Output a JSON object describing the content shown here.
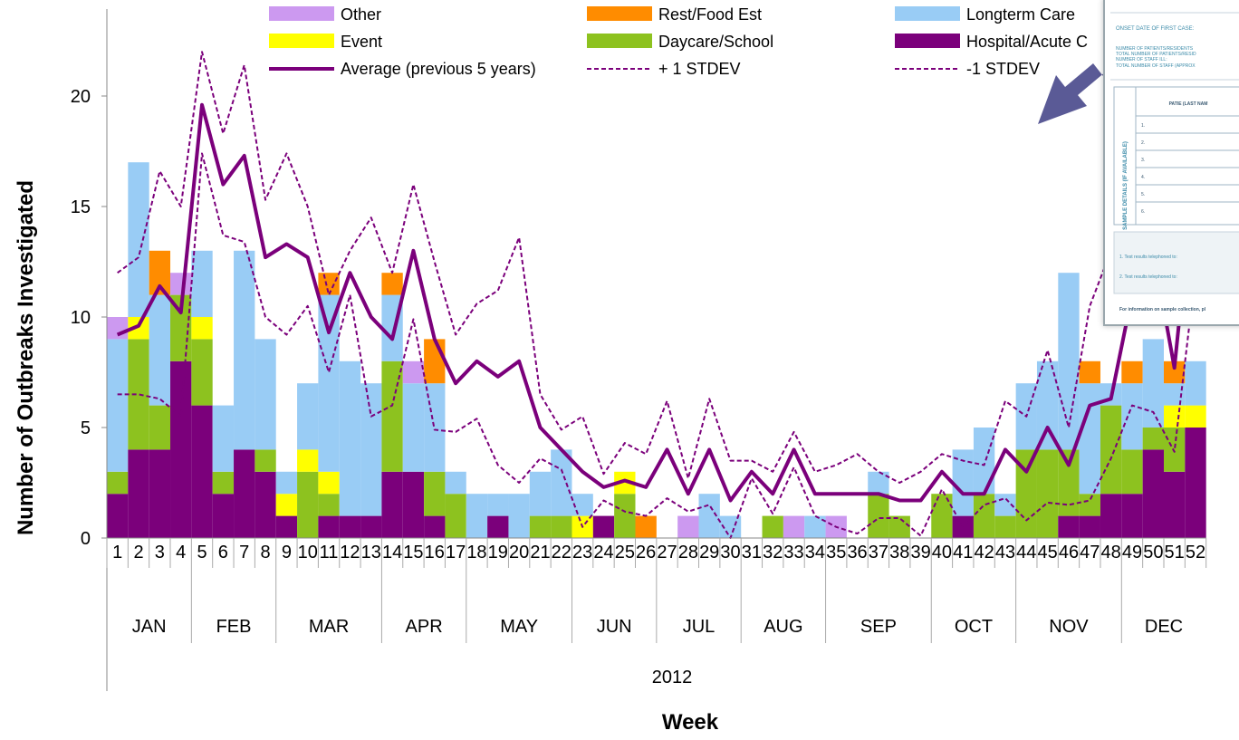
{
  "chart_data": {
    "type": "bar",
    "stacked": true,
    "title": "",
    "ylabel": "Number of Outbreaks Investigated",
    "xlabel": "Week",
    "year_label": "2012",
    "ylim": [
      0,
      24
    ],
    "yticks": [
      0,
      5,
      10,
      15,
      20
    ],
    "grid": false,
    "legend_position": "top",
    "weeks": [
      "1",
      "2",
      "3",
      "4",
      "5",
      "6",
      "7",
      "8",
      "9",
      "10",
      "11",
      "12",
      "13",
      "14",
      "15",
      "16",
      "17",
      "18",
      "19",
      "20",
      "21",
      "22",
      "23",
      "24",
      "25",
      "26",
      "27",
      "28",
      "29",
      "30",
      "31",
      "32",
      "33",
      "34",
      "35",
      "36",
      "37",
      "38",
      "39",
      "40",
      "41",
      "42",
      "43",
      "44",
      "45",
      "46",
      "47",
      "48",
      "49",
      "50",
      "51",
      "52"
    ],
    "months": [
      {
        "label": "JAN",
        "start": 1,
        "end": 4
      },
      {
        "label": "FEB",
        "start": 5,
        "end": 8
      },
      {
        "label": "MAR",
        "start": 9,
        "end": 13
      },
      {
        "label": "APR",
        "start": 14,
        "end": 17
      },
      {
        "label": "MAY",
        "start": 18,
        "end": 22
      },
      {
        "label": "JUN",
        "start": 23,
        "end": 26
      },
      {
        "label": "JUL",
        "start": 27,
        "end": 30
      },
      {
        "label": "AUG",
        "start": 31,
        "end": 34
      },
      {
        "label": "SEP",
        "start": 35,
        "end": 39
      },
      {
        "label": "OCT",
        "start": 40,
        "end": 43
      },
      {
        "label": "NOV",
        "start": 44,
        "end": 48
      },
      {
        "label": "DEC",
        "start": 49,
        "end": 52
      }
    ],
    "series": [
      {
        "name": "Hospital/Acute Care",
        "color": "#7b007b",
        "values": [
          2,
          4,
          4,
          8,
          6,
          2,
          4,
          3,
          1,
          0,
          1,
          1,
          1,
          3,
          3,
          1,
          0,
          0,
          1,
          0,
          0,
          0,
          0,
          1,
          0,
          0,
          0,
          0,
          0,
          0,
          0,
          0,
          0,
          0,
          0,
          0,
          0,
          0,
          0,
          0,
          1,
          0,
          0,
          0,
          0,
          1,
          1,
          2,
          2,
          4,
          3,
          5
        ]
      },
      {
        "name": "Daycare/School",
        "color": "#8dc21f",
        "values": [
          1,
          5,
          2,
          3,
          3,
          1,
          0,
          1,
          0,
          3,
          1,
          0,
          0,
          5,
          0,
          2,
          2,
          0,
          0,
          0,
          1,
          1,
          0,
          0,
          2,
          0,
          0,
          0,
          0,
          0,
          0,
          1,
          0,
          0,
          0,
          0,
          2,
          1,
          0,
          2,
          0,
          2,
          1,
          4,
          4,
          3,
          1,
          4,
          2,
          1,
          2,
          0
        ]
      },
      {
        "name": "Event",
        "color": "#ffff00",
        "values": [
          0,
          1,
          0,
          0,
          1,
          0,
          0,
          0,
          1,
          1,
          1,
          0,
          0,
          0,
          0,
          0,
          0,
          0,
          0,
          0,
          0,
          0,
          1,
          0,
          1,
          0,
          0,
          0,
          0,
          0,
          0,
          0,
          0,
          0,
          0,
          0,
          0,
          0,
          0,
          0,
          0,
          0,
          0,
          0,
          0,
          0,
          0,
          0,
          0,
          0,
          1,
          1
        ]
      },
      {
        "name": "Longterm Care",
        "color": "#99ccf5",
        "values": [
          6,
          7,
          5,
          0,
          3,
          3,
          9,
          5,
          1,
          3,
          8,
          7,
          6,
          3,
          4,
          4,
          1,
          2,
          1,
          2,
          2,
          3,
          1,
          0,
          0,
          0,
          0,
          0,
          2,
          1,
          0,
          0,
          0,
          1,
          0,
          0,
          1,
          0,
          0,
          0,
          3,
          3,
          1,
          3,
          4,
          8,
          5,
          1,
          3,
          4,
          1,
          2
        ]
      },
      {
        "name": "Rest/Food Est",
        "color": "#ff8c00",
        "values": [
          0,
          0,
          2,
          0,
          0,
          0,
          0,
          0,
          0,
          0,
          1,
          0,
          0,
          1,
          0,
          2,
          0,
          0,
          0,
          0,
          0,
          0,
          0,
          0,
          0,
          1,
          0,
          0,
          0,
          0,
          0,
          0,
          0,
          0,
          0,
          0,
          0,
          0,
          0,
          0,
          0,
          0,
          0,
          0,
          0,
          0,
          1,
          0,
          1,
          0,
          1,
          0
        ]
      },
      {
        "name": "Other",
        "color": "#cc99f0",
        "values": [
          1,
          0,
          0,
          1,
          0,
          0,
          0,
          0,
          0,
          0,
          0,
          0,
          0,
          0,
          1,
          0,
          0,
          0,
          0,
          0,
          0,
          0,
          0,
          0,
          0,
          0,
          0,
          1,
          0,
          0,
          0,
          0,
          1,
          0,
          1,
          0,
          0,
          0,
          0,
          0,
          0,
          0,
          0,
          0,
          0,
          0,
          0,
          0,
          0,
          0,
          0,
          0
        ]
      }
    ],
    "lines": [
      {
        "name": "Average (previous 5 years)",
        "color": "#7b007b",
        "style": "solid",
        "values": [
          9.2,
          9.6,
          11.4,
          10.2,
          19.6,
          16.0,
          17.3,
          12.7,
          13.3,
          12.7,
          9.3,
          12.0,
          10.0,
          9.0,
          13.0,
          9.0,
          7.0,
          8.0,
          7.3,
          8.0,
          5.0,
          4.0,
          3.0,
          2.3,
          2.6,
          2.3,
          4.0,
          2.0,
          4.0,
          1.7,
          3.0,
          2.0,
          4.0,
          2.0,
          2.0,
          2.0,
          2.0,
          1.7,
          1.7,
          3.0,
          2.0,
          2.0,
          4.0,
          3.0,
          5.0,
          3.3,
          6.0,
          6.3,
          11.0,
          13.0,
          7.7,
          17.0
        ]
      },
      {
        "name": "+ 1 STDEV",
        "color": "#7b007b",
        "style": "dashed",
        "values": [
          12.0,
          12.7,
          16.6,
          15.0,
          22.0,
          18.3,
          21.4,
          15.3,
          17.4,
          15.0,
          11.0,
          13.0,
          14.5,
          12.0,
          16.0,
          12.5,
          9.2,
          10.6,
          11.2,
          13.6,
          6.5,
          4.9,
          5.5,
          2.9,
          4.3,
          3.8,
          6.2,
          2.7,
          6.3,
          3.5,
          3.5,
          3.0,
          4.8,
          3.0,
          3.3,
          3.8,
          3.0,
          2.5,
          3.0,
          3.8,
          3.5,
          3.3,
          6.2,
          5.5,
          8.5,
          5.0,
          10.5,
          13.0,
          11.0,
          13.0,
          10.0,
          22.0
        ]
      },
      {
        "name": "-1 STDEV",
        "color": "#7b007b",
        "style": "dashed",
        "values": [
          6.5,
          6.5,
          6.3,
          5.5,
          17.4,
          13.7,
          13.4,
          10.0,
          9.2,
          10.5,
          7.5,
          11.0,
          5.5,
          6.0,
          9.9,
          4.9,
          4.8,
          5.4,
          3.3,
          2.5,
          3.6,
          3.1,
          0.5,
          1.7,
          1.2,
          1.0,
          1.8,
          1.2,
          1.5,
          0.0,
          2.7,
          1.1,
          3.2,
          1.0,
          0.5,
          0.2,
          0.9,
          0.9,
          0.1,
          2.2,
          0.5,
          1.5,
          1.8,
          0.8,
          1.6,
          1.5,
          1.7,
          3.6,
          6.0,
          5.7,
          3.9,
          12.0
        ]
      }
    ],
    "legend": [
      {
        "label": "Other",
        "kind": "swatch",
        "color": "#cc99f0"
      },
      {
        "label": "Rest/Food Est",
        "kind": "swatch",
        "color": "#ff8c00"
      },
      {
        "label": "Longterm Care",
        "kind": "swatch",
        "color": "#99ccf5"
      },
      {
        "label": "Event",
        "kind": "swatch",
        "color": "#ffff00"
      },
      {
        "label": "Daycare/School",
        "kind": "swatch",
        "color": "#8dc21f"
      },
      {
        "label": "Hospital/Acute C",
        "kind": "swatch",
        "color": "#7b007b"
      },
      {
        "label": "Average (previous 5 years)",
        "kind": "solid",
        "color": "#7b007b"
      },
      {
        "label": "+ 1 STDEV",
        "kind": "dashed",
        "color": "#7b007b"
      },
      {
        "label": "-1 STDEV",
        "kind": "dashed",
        "color": "#7b007b"
      }
    ]
  },
  "inset_form": {
    "lines": [
      "ONSET DATE OF FIRST CASE:",
      "NUMBER OF PATIENTS/RESIDENTS",
      "TOTAL NUMBER OF PATIENTS/RESID",
      "NUMBER OF STAFF ILL:",
      "TOTAL NUMBER OF STAFF (APPROX"
    ],
    "table_header": "PATIE (LAST NAM",
    "side_label": "SAMPLE DETAILS (IF AVAILABLE)",
    "rows": [
      "1.",
      "2.",
      "3.",
      "4.",
      "5.",
      "6."
    ],
    "footer_1": "1. Test results telephoned to:",
    "footer_2": "2. Test results telephoned to:",
    "footer_note": "For information on sample collection, pl",
    "arrow_color": "#5a5a96"
  }
}
